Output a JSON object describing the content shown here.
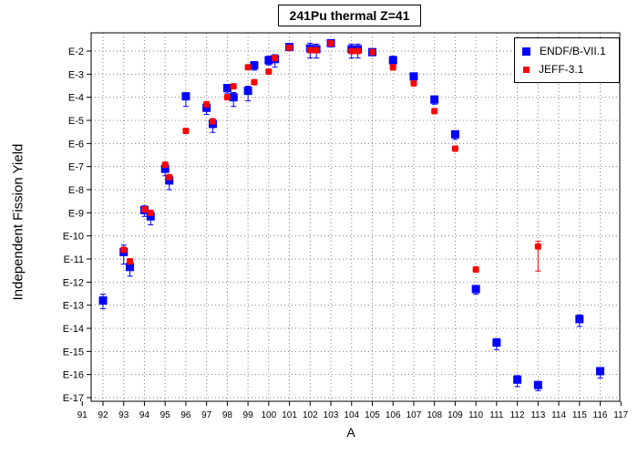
{
  "chart_data": {
    "type": "scatter",
    "title": "241Pu thermal Z=41",
    "xlabel": "A",
    "ylabel": "Independent Fission Yield",
    "xlim": [
      91,
      117
    ],
    "ylim_exponent": [
      -17,
      -1.5
    ],
    "y_scale": "log",
    "x_ticks": [
      "91",
      "92",
      "93",
      "94",
      "95",
      "96",
      "97",
      "98",
      "99",
      "100",
      "101",
      "102",
      "103",
      "104",
      "105",
      "106",
      "107",
      "108",
      "109",
      "110",
      "111",
      "112",
      "113",
      "114",
      "115",
      "116",
      "117"
    ],
    "y_ticks": [
      {
        "label": "E-2",
        "exp": -2
      },
      {
        "label": "E-3",
        "exp": -3
      },
      {
        "label": "E-4",
        "exp": -4
      },
      {
        "label": "E-5",
        "exp": -5
      },
      {
        "label": "E-6",
        "exp": -6
      },
      {
        "label": "E-7",
        "exp": -7
      },
      {
        "label": "E-8",
        "exp": -8
      },
      {
        "label": "E-9",
        "exp": -9
      },
      {
        "label": "E-10",
        "exp": -10
      },
      {
        "label": "E-11",
        "exp": -11
      },
      {
        "label": "E-12",
        "exp": -12
      },
      {
        "label": "E-13",
        "exp": -13
      },
      {
        "label": "E-14",
        "exp": -14
      },
      {
        "label": "E-15",
        "exp": -15
      },
      {
        "label": "E-16",
        "exp": -16
      },
      {
        "label": "E-17",
        "exp": -17
      }
    ],
    "grid": true,
    "legend_position": "top-right",
    "series": [
      {
        "name": "ENDF/B-VII.1",
        "color": "#0000ff",
        "marker": "square",
        "points": [
          {
            "x": 92.0,
            "y": 1.6e-13,
            "ylo": 7e-14,
            "yhi": 3e-13
          },
          {
            "x": 93.0,
            "y": 2e-11,
            "ylo": 6e-12,
            "yhi": 4e-11
          },
          {
            "x": 93.3,
            "y": 4.5e-12,
            "ylo": 1.8e-12,
            "yhi": 8e-12
          },
          {
            "x": 94.0,
            "y": 1.3e-09,
            "ylo": 7e-10,
            "yhi": 2e-09
          },
          {
            "x": 94.3,
            "y": 7e-10,
            "ylo": 3e-10,
            "yhi": 1.2e-09
          },
          {
            "x": 95.0,
            "y": 8e-08,
            "ylo": 4e-08,
            "yhi": 1.4e-07
          },
          {
            "x": 95.2,
            "y": 2.5e-08,
            "ylo": 1e-08,
            "yhi": 4e-08
          },
          {
            "x": 96.0,
            "y": 0.00011,
            "ylo": 4e-05,
            "yhi": 0.00015
          },
          {
            "x": 97.0,
            "y": 3.5e-05,
            "ylo": 1.8e-05,
            "yhi": 5e-05
          },
          {
            "x": 97.3,
            "y": 7e-06,
            "ylo": 3e-06,
            "yhi": 1.2e-05
          },
          {
            "x": 98.0,
            "y": 0.00025,
            "ylo": 0.00015,
            "yhi": 0.00035
          },
          {
            "x": 98.3,
            "y": 0.0001,
            "ylo": 4e-05,
            "yhi": 0.00016
          },
          {
            "x": 99.0,
            "y": 0.00019,
            "ylo": 7e-05,
            "yhi": 0.0003
          },
          {
            "x": 99.3,
            "y": 0.0024,
            "ylo": 0.0015,
            "yhi": 0.0035
          },
          {
            "x": 100.0,
            "y": 0.004,
            "ylo": 0.0025,
            "yhi": 0.006
          },
          {
            "x": 100.3,
            "y": 0.0045,
            "ylo": 0.002,
            "yhi": 0.007
          },
          {
            "x": 101.0,
            "y": 0.015,
            "ylo": 0.011,
            "yhi": 0.02
          },
          {
            "x": 102.0,
            "y": 0.013,
            "ylo": 0.005,
            "yhi": 0.022
          },
          {
            "x": 102.3,
            "y": 0.012,
            "ylo": 0.005,
            "yhi": 0.02
          },
          {
            "x": 103.0,
            "y": 0.022,
            "ylo": 0.018,
            "yhi": 0.026
          },
          {
            "x": 104.0,
            "y": 0.012,
            "ylo": 0.005,
            "yhi": 0.02
          },
          {
            "x": 104.3,
            "y": 0.012,
            "ylo": 0.005,
            "yhi": 0.02
          },
          {
            "x": 105.0,
            "y": 0.009,
            "ylo": 0.007,
            "yhi": 0.012
          },
          {
            "x": 106.0,
            "y": 0.004,
            "ylo": 0.0024,
            "yhi": 0.006
          },
          {
            "x": 107.0,
            "y": 0.0008,
            "ylo": 0.0005,
            "yhi": 0.0011
          },
          {
            "x": 108.0,
            "y": 8e-05,
            "ylo": 5e-05,
            "yhi": 0.00011
          },
          {
            "x": 109.0,
            "y": 2.5e-06,
            "ylo": 1.5e-06,
            "yhi": 3.5e-06
          },
          {
            "x": 110.0,
            "y": 5e-13,
            "ylo": 3e-13,
            "yhi": 7e-13
          },
          {
            "x": 111.0,
            "y": 2.4e-15,
            "ylo": 1.2e-15,
            "yhi": 3.6e-15
          },
          {
            "x": 112.0,
            "y": 6e-17,
            "ylo": 3e-17,
            "yhi": 9e-17
          },
          {
            "x": 113.0,
            "y": 3.5e-17,
            "ylo": 2e-17,
            "yhi": 5e-17
          },
          {
            "x": 115.0,
            "y": 2.5e-14,
            "ylo": 1.2e-14,
            "yhi": 3.8e-14
          },
          {
            "x": 116.0,
            "y": 1.4e-16,
            "ylo": 7e-17,
            "yhi": 2e-16
          }
        ]
      },
      {
        "name": "JEFF-3.1",
        "color": "#ff0000",
        "marker": "circle",
        "points": [
          {
            "x": 93.0,
            "y": 2.5e-11,
            "ylo": 2e-11,
            "yhi": 3e-11
          },
          {
            "x": 93.3,
            "y": 8e-12,
            "ylo": 6e-12,
            "yhi": 1e-11
          },
          {
            "x": 94.0,
            "y": 1.4e-09,
            "ylo": 1.2e-09,
            "yhi": 1.6e-09
          },
          {
            "x": 94.3,
            "y": 1e-09,
            "ylo": 8e-10,
            "yhi": 1.2e-09
          },
          {
            "x": 95.0,
            "y": 1.2e-07,
            "ylo": 1e-07,
            "yhi": 1.4e-07
          },
          {
            "x": 95.2,
            "y": 3.5e-08,
            "ylo": 3e-08,
            "yhi": 4e-08
          },
          {
            "x": 96.0,
            "y": 3.5e-06,
            "ylo": 3e-06,
            "yhi": 4e-06
          },
          {
            "x": 97.0,
            "y": 5e-05,
            "ylo": 4.5e-05,
            "yhi": 5.5e-05
          },
          {
            "x": 97.3,
            "y": 9e-06,
            "ylo": 8e-06,
            "yhi": 1e-05
          },
          {
            "x": 98.0,
            "y": 0.0001,
            "ylo": 8e-05,
            "yhi": 0.00012
          },
          {
            "x": 98.3,
            "y": 0.0003,
            "ylo": 0.00025,
            "yhi": 0.00035
          },
          {
            "x": 99.0,
            "y": 0.002,
            "ylo": 0.0016,
            "yhi": 0.0024
          },
          {
            "x": 99.3,
            "y": 0.00045,
            "ylo": 0.0004,
            "yhi": 0.0005
          },
          {
            "x": 100.0,
            "y": 0.0013,
            "ylo": 0.0011,
            "yhi": 0.0015
          },
          {
            "x": 100.3,
            "y": 0.005,
            "ylo": 0.0045,
            "yhi": 0.0055
          },
          {
            "x": 101.0,
            "y": 0.014,
            "ylo": 0.012,
            "yhi": 0.016
          },
          {
            "x": 102.0,
            "y": 0.011,
            "ylo": 0.01,
            "yhi": 0.012
          },
          {
            "x": 102.3,
            "y": 0.011,
            "ylo": 0.01,
            "yhi": 0.012
          },
          {
            "x": 103.0,
            "y": 0.022,
            "ylo": 0.02,
            "yhi": 0.024
          },
          {
            "x": 104.0,
            "y": 0.01,
            "ylo": 0.009,
            "yhi": 0.011
          },
          {
            "x": 104.3,
            "y": 0.01,
            "ylo": 0.009,
            "yhi": 0.011
          },
          {
            "x": 105.0,
            "y": 0.009,
            "ylo": 0.008,
            "yhi": 0.01
          },
          {
            "x": 106.0,
            "y": 0.002,
            "ylo": 0.0015,
            "yhi": 0.0025
          },
          {
            "x": 107.0,
            "y": 0.0004,
            "ylo": 0.00035,
            "yhi": 0.00045
          },
          {
            "x": 108.0,
            "y": 2.5e-05,
            "ylo": 2e-05,
            "yhi": 3e-05
          },
          {
            "x": 109.0,
            "y": 6e-07,
            "ylo": 5e-07,
            "yhi": 7e-07
          },
          {
            "x": 110.0,
            "y": 3.5e-12,
            "ylo": 3e-12,
            "yhi": 4e-12
          },
          {
            "x": 113.0,
            "y": 3.5e-11,
            "ylo": 3e-12,
            "yhi": 6e-11
          }
        ]
      }
    ]
  }
}
